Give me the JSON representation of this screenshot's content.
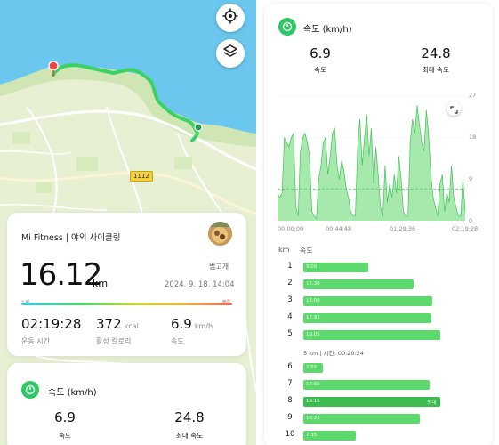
{
  "map": {
    "locate_icon": "locate-target-icon",
    "layers_icon": "layers-icon",
    "road_number": "1112"
  },
  "activity": {
    "title": "Mi Fitness | 야외 사이클링",
    "distance_value": "16.12",
    "distance_unit": "km",
    "rank_label": "범고개",
    "date": "2024. 9. 18. 14:04",
    "hr_low_label": "느림",
    "hr_high_label": "빠름",
    "stats": [
      {
        "value": "02:19:28",
        "unit": "",
        "label": "운동 시간"
      },
      {
        "value": "372",
        "unit": "kcal",
        "label": "활성 칼로리"
      },
      {
        "value": "6.9",
        "unit": "km/h",
        "label": "속도"
      }
    ]
  },
  "speed_card_left": {
    "title": "속도 (km/h)",
    "avg_value": "6.9",
    "avg_label": "속도",
    "max_value": "24.8",
    "max_label": "최대 속도"
  },
  "speed_panel": {
    "title": "속도 (km/h)",
    "avg_value": "6.9",
    "avg_label": "속도",
    "max_value": "24.8",
    "max_label": "최대 속도",
    "x_ticks": [
      "00:00:00",
      "00:44:48",
      "01:29:36",
      "02:19:28"
    ],
    "y_ticks": [
      "27",
      "18",
      "9",
      "0"
    ],
    "km_header": "km",
    "speed_header": "속도",
    "segment_note": "5 km | 시간: 00:20:24",
    "max_tag": "최대",
    "splits": [
      {
        "km": "1",
        "speed": 9.0,
        "label": "9.00"
      },
      {
        "km": "2",
        "speed": 15.36,
        "label": "15.36"
      },
      {
        "km": "3",
        "speed": 18.0,
        "label": "18.00"
      },
      {
        "km": "4",
        "speed": 17.91,
        "label": "17.91"
      },
      {
        "km": "5",
        "speed": 19.05,
        "label": "19.05"
      },
      {
        "km": "6",
        "speed": 2.55,
        "label": "2.55"
      },
      {
        "km": "7",
        "speed": 17.65,
        "label": "17.65"
      },
      {
        "km": "8",
        "speed": 19.15,
        "label": "19.15"
      },
      {
        "km": "9",
        "speed": 16.22,
        "label": "16.22"
      },
      {
        "km": "10",
        "speed": 7.35,
        "label": "7.35"
      }
    ]
  },
  "chart_data": {
    "type": "area",
    "title": "속도 (km/h)",
    "xlabel": "",
    "ylabel": "",
    "x_ticks": [
      "00:00:00",
      "00:44:48",
      "01:29:36",
      "02:19:28"
    ],
    "ylim": [
      0,
      27
    ],
    "avg_line": 6.9,
    "series": [
      {
        "values": [
          6,
          5,
          6,
          18,
          17,
          16,
          18,
          19,
          3,
          1,
          15,
          18,
          19,
          17,
          14,
          2,
          1,
          0.5,
          9,
          12,
          17,
          18,
          10,
          14,
          19,
          20,
          12,
          9,
          13,
          11,
          7,
          5,
          2,
          1,
          1,
          16,
          22,
          12,
          18,
          23,
          14,
          20,
          8,
          16,
          10,
          3,
          1,
          12,
          4,
          8,
          5,
          10,
          6,
          14,
          9,
          2,
          1,
          1,
          17,
          22,
          19,
          25,
          21,
          17,
          15,
          24,
          19,
          10,
          5,
          3,
          1,
          8,
          10,
          2,
          6,
          4,
          12,
          5,
          3,
          1,
          1,
          9,
          2
        ]
      }
    ],
    "colors": {
      "fill": "#a7e8ad",
      "stroke": "#3ec457",
      "avg": "#3ec457"
    }
  }
}
